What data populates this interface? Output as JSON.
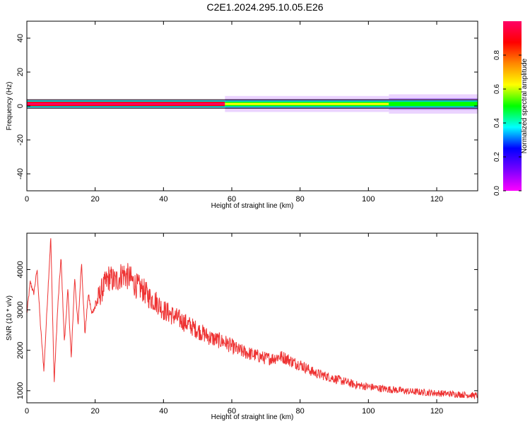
{
  "title": "C2E1.2024.295.10.05.E26",
  "colors": {
    "snr_line": "#ee3333",
    "colorbar_stops": [
      "#ff00ff",
      "#7700ff",
      "#0000ff",
      "#00ffff",
      "#00ff00",
      "#ffff00",
      "#ff8800",
      "#ff0000",
      "#ff0066"
    ]
  },
  "chart_data": [
    {
      "type": "heatmap",
      "xlabel": "Height of straight line (km)",
      "ylabel": "Frequency (Hz)",
      "xlim": [
        0,
        132
      ],
      "ylim": [
        -50,
        50
      ],
      "x_ticks": [
        "0",
        "20",
        "40",
        "60",
        "80",
        "100",
        "120"
      ],
      "y_ticks": [
        "-40",
        "-20",
        "0",
        "20",
        "40"
      ],
      "colorbar": {
        "label": "Normalized spectral amplitude",
        "range": [
          0,
          1
        ],
        "ticks": [
          "0.0",
          "0.2",
          "0.4",
          "0.6",
          "0.8"
        ]
      },
      "band_center_hz": 1.2,
      "band_segments": [
        {
          "x_start": 0,
          "x_end": 58,
          "amplitude": 0.95
        },
        {
          "x_start": 58,
          "x_end": 106,
          "amplitude": 0.62
        },
        {
          "x_start": 106,
          "x_end": 132,
          "amplitude": 0.45
        }
      ]
    },
    {
      "type": "line",
      "xlabel": "Height of straight line (km)",
      "ylabel": "SNR (10 * v/v)",
      "xlim": [
        0,
        132
      ],
      "ylim": [
        700,
        4900
      ],
      "x_ticks": [
        "0",
        "20",
        "40",
        "60",
        "80",
        "100",
        "120"
      ],
      "y_ticks": [
        "1000",
        "2000",
        "3000",
        "4000"
      ],
      "series": [
        {
          "x": [
            0,
            1,
            2,
            3,
            4,
            5,
            6,
            7,
            8,
            9,
            10,
            11,
            12,
            13,
            14,
            15,
            16,
            17,
            18,
            19,
            20,
            22,
            24,
            26,
            28,
            30,
            32,
            34,
            36,
            38,
            40,
            42,
            44,
            46,
            48,
            50,
            52,
            54,
            56,
            58,
            60,
            62,
            64,
            66,
            68,
            70,
            72,
            74,
            76,
            78,
            80,
            82,
            84,
            86,
            88,
            90,
            92,
            94,
            96,
            98,
            100,
            104,
            108,
            112,
            116,
            120,
            124,
            128,
            132
          ],
          "y": [
            2900,
            3700,
            3400,
            4000,
            2600,
            1500,
            3200,
            4800,
            1200,
            3000,
            4300,
            2200,
            3500,
            1800,
            3800,
            2600,
            4200,
            2400,
            3400,
            2900,
            3100,
            3500,
            3800,
            3700,
            3900,
            3800,
            3600,
            3500,
            3300,
            3200,
            3000,
            2900,
            2800,
            2700,
            2600,
            2500,
            2400,
            2300,
            2250,
            2200,
            2100,
            2000,
            1950,
            1900,
            1850,
            1800,
            1800,
            1850,
            1800,
            1700,
            1650,
            1550,
            1450,
            1400,
            1350,
            1300,
            1250,
            1200,
            1150,
            1120,
            1100,
            1050,
            1020,
            980,
            960,
            940,
            920,
            900,
            880
          ]
        }
      ]
    }
  ]
}
